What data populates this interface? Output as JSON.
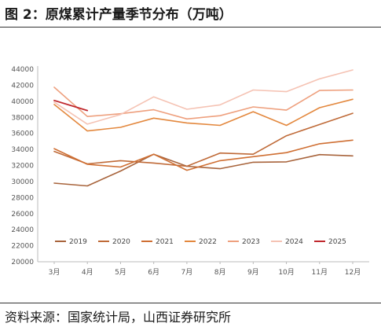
{
  "figure": {
    "title": "图 2：原煤累计产量季节分布（万吨）",
    "source": "资料来源：国家统计局，山西证券研究所"
  },
  "chart_data": {
    "type": "line",
    "title": "原煤累计产量季节分布（万吨）",
    "xlabel": "",
    "ylabel": "",
    "categories": [
      "3月",
      "4月",
      "5月",
      "6月",
      "7月",
      "8月",
      "9月",
      "10月",
      "11月",
      "12月"
    ],
    "yticks": [
      "20000",
      "22000",
      "24000",
      "26000",
      "28000",
      "30000",
      "32000",
      "34000",
      "36000",
      "38000",
      "40000",
      "42000",
      "44000"
    ],
    "ylim": [
      20000,
      44000
    ],
    "grid": false,
    "legend_position": "bottom-inside",
    "series": [
      {
        "name": "2019",
        "color": "#a8643c",
        "values": [
          29800,
          29450,
          31300,
          33400,
          31900,
          31600,
          32400,
          32450,
          33350,
          33200
        ]
      },
      {
        "name": "2020",
        "color": "#bf6a38",
        "values": [
          33750,
          32200,
          32600,
          32300,
          31900,
          33550,
          33400,
          35700,
          37100,
          38500
        ]
      },
      {
        "name": "2021",
        "color": "#cf6f33",
        "values": [
          34100,
          32150,
          31800,
          33400,
          31400,
          32600,
          33100,
          33600,
          34700,
          35150
        ]
      },
      {
        "name": "2022",
        "color": "#e3883e",
        "values": [
          39600,
          36300,
          36750,
          37900,
          37300,
          37000,
          38700,
          37000,
          39200,
          40250
        ]
      },
      {
        "name": "2023",
        "color": "#eea07e",
        "values": [
          41750,
          38100,
          38450,
          38950,
          37800,
          38200,
          39300,
          38900,
          41350,
          41400
        ]
      },
      {
        "name": "2024",
        "color": "#f5c3b4",
        "values": [
          39900,
          37150,
          38350,
          40550,
          39000,
          39550,
          41400,
          41200,
          42800,
          43900
        ]
      },
      {
        "name": "2025",
        "color": "#c0282d",
        "values": [
          40100,
          38850,
          null,
          null,
          null,
          null,
          null,
          null,
          null,
          null
        ]
      }
    ]
  }
}
